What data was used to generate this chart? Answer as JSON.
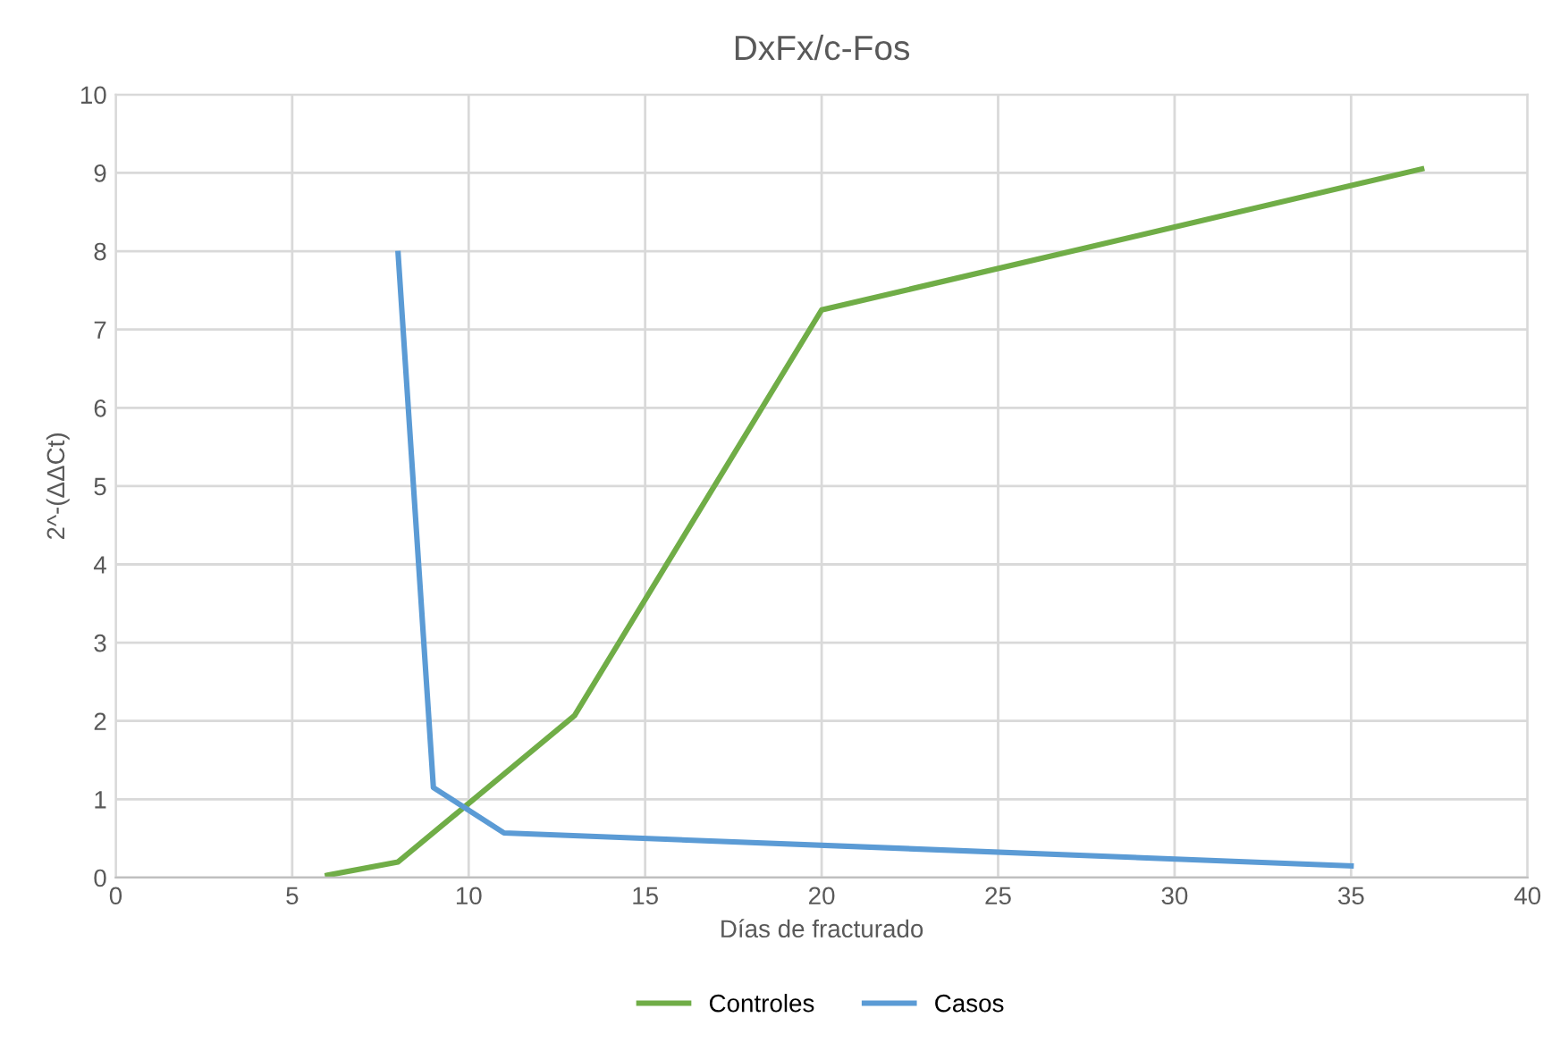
{
  "chart_data": {
    "type": "line",
    "title": "DxFx/c-Fos",
    "xlabel": "Días de fracturado",
    "ylabel": "2^-(ΔΔCt)",
    "xlim": [
      0,
      40
    ],
    "xticks": [
      0,
      5,
      10,
      15,
      20,
      25,
      30,
      35,
      40
    ],
    "ylim": [
      0,
      10
    ],
    "yticks": [
      0,
      1,
      2,
      3,
      4,
      5,
      6,
      7,
      8,
      9,
      10
    ],
    "grid": true,
    "legend": "bottom",
    "marker": "none",
    "line_style": "solid",
    "series": [
      {
        "name": "Controles",
        "color": "#70ad47",
        "x": [
          6,
          8,
          13,
          20,
          37
        ],
        "values": [
          0.03,
          0.2,
          2.07,
          7.25,
          9.05
        ]
      },
      {
        "name": "Casos",
        "color": "#5b9bd5",
        "x": [
          8,
          9,
          11,
          35
        ],
        "values": [
          7.97,
          1.15,
          0.57,
          0.15
        ]
      }
    ]
  }
}
